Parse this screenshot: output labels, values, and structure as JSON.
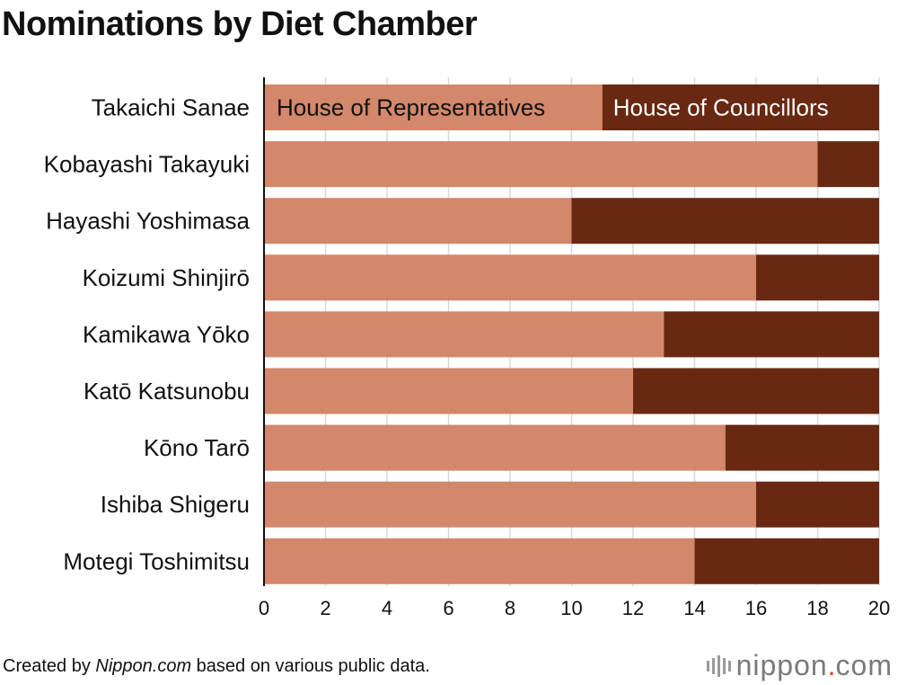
{
  "title": "Nominations by Diet Chamber",
  "footer": {
    "prefix": "Created by ",
    "source": "Nippon.com",
    "suffix": " based on various public data."
  },
  "logo": {
    "name": "nippon",
    "dot": ".",
    "tld": "com"
  },
  "colors": {
    "representatives": "#d3876b",
    "councillors": "#682812",
    "grid": "#d8d8d8",
    "axis": "#111111"
  },
  "chart_data": {
    "type": "bar",
    "orientation": "horizontal",
    "stacked": true,
    "categories": [
      "Takaichi Sanae",
      "Kobayashi Takayuki",
      "Hayashi Yoshimasa",
      "Koizumi Shinjirō",
      "Kamikawa Yōko",
      "Katō Katsunobu",
      "Kōno Tarō",
      "Ishiba Shigeru",
      "Motegi Toshimitsu"
    ],
    "series": [
      {
        "name": "House of Representatives",
        "values": [
          11,
          18,
          10,
          16,
          13,
          12,
          15,
          16,
          14
        ]
      },
      {
        "name": "House of Councillors",
        "values": [
          9,
          2,
          10,
          4,
          7,
          8,
          5,
          4,
          6
        ]
      }
    ],
    "xlim": [
      0,
      20
    ],
    "xticks": [
      "0",
      "2",
      "4",
      "6",
      "8",
      "10",
      "12",
      "14",
      "16",
      "18",
      "20"
    ],
    "grid": true,
    "legend": "labels inside first bar"
  }
}
